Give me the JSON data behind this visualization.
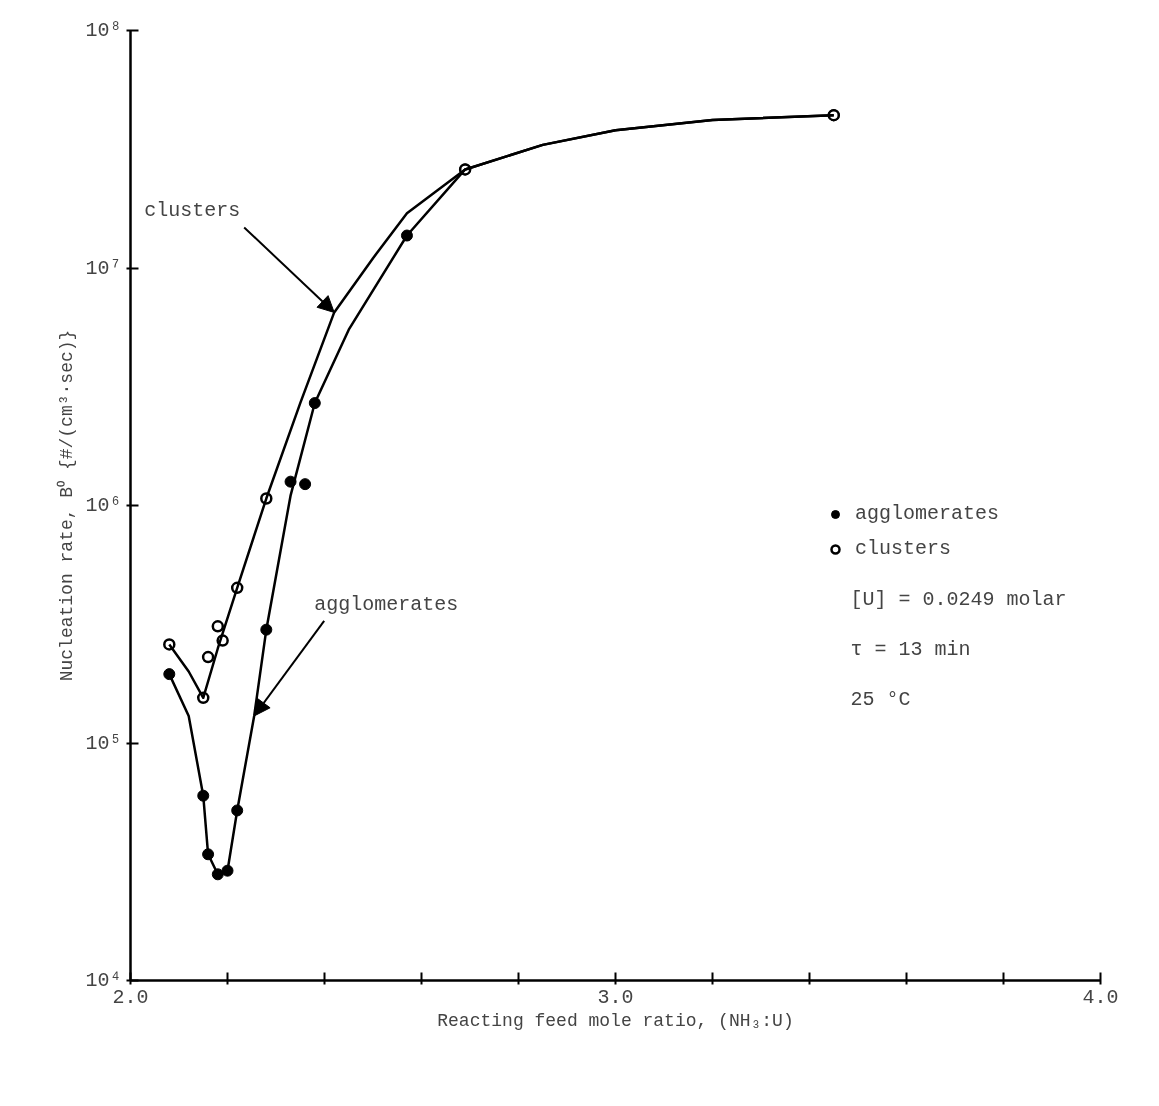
{
  "chart_data": {
    "type": "scatter",
    "xlabel": "Reacting feed mole ratio, (NH₃:U)",
    "ylabel": "Nucleation rate, B⁰ {#/(cm³·sec)}",
    "log": "y",
    "xlim": [
      2.0,
      4.0
    ],
    "ylim": [
      10000,
      100000000
    ],
    "xticks": [
      {
        "value": 2.0,
        "label": "2.0"
      },
      {
        "value": 2.2,
        "label": null
      },
      {
        "value": 2.4,
        "label": null
      },
      {
        "value": 2.6,
        "label": null
      },
      {
        "value": 2.8,
        "label": null
      },
      {
        "value": 3.0,
        "label": "3.0"
      },
      {
        "value": 3.2,
        "label": null
      },
      {
        "value": 3.4,
        "label": null
      },
      {
        "value": 3.6,
        "label": null
      },
      {
        "value": 3.8,
        "label": null
      },
      {
        "value": 4.0,
        "label": "4.0"
      }
    ],
    "yticks": [
      {
        "value": 10000,
        "label": "10⁴"
      },
      {
        "value": 100000,
        "label": "10⁵"
      },
      {
        "value": 1000000,
        "label": "10⁶"
      },
      {
        "value": 10000000,
        "label": "10⁷"
      },
      {
        "value": 100000000,
        "label": "10⁸"
      }
    ],
    "grid": false,
    "legend": "right",
    "series": [
      {
        "name": "agglomerates",
        "marker": "circle",
        "color": "#000000",
        "x": [
          2.08,
          2.15,
          2.16,
          2.18,
          2.2,
          2.22,
          2.28,
          2.33,
          2.36,
          2.38,
          2.57,
          2.69,
          3.45
        ],
        "values": [
          195000,
          60000,
          34000,
          28000,
          29000,
          52000,
          300000,
          1260000,
          1230000,
          2700000,
          13700000,
          26000000,
          44000000
        ]
      },
      {
        "name": "clusters",
        "marker": "circle_open",
        "color": "#000000",
        "x": [
          2.08,
          2.15,
          2.16,
          2.18,
          2.19,
          2.22,
          2.28,
          2.69,
          3.45
        ],
        "values": [
          260000,
          155000,
          230000,
          310000,
          270000,
          450000,
          1070000,
          26000000,
          44000000
        ]
      },
      {
        "type": "line",
        "color": "#000000",
        "x": [
          2.08,
          2.12,
          2.15,
          2.18,
          2.22,
          2.28,
          2.35,
          2.42,
          2.5,
          2.57,
          2.69,
          2.85,
          3.0,
          3.2,
          3.45
        ],
        "values": [
          260000,
          200000,
          155000,
          250000,
          450000,
          1070000,
          2700000,
          6500000,
          11000000,
          17000000,
          26000000,
          33000000,
          38000000,
          42000000,
          44000000
        ]
      },
      {
        "type": "line",
        "color": "#000000",
        "x": [
          2.08,
          2.12,
          2.15,
          2.16,
          2.18,
          2.2,
          2.22,
          2.255,
          2.28,
          2.33,
          2.38,
          2.45,
          2.57,
          2.69,
          2.85,
          3.0,
          3.2,
          3.45
        ],
        "values": [
          195000,
          130000,
          60000,
          34000,
          28000,
          29000,
          52000,
          130000,
          300000,
          1100000,
          2700000,
          5500000,
          13700000,
          26000000,
          33000000,
          38000000,
          42000000,
          44000000
        ]
      }
    ],
    "annotations": [
      {
        "text": "clusters",
        "x": 2.42,
        "y": 6500000
      },
      {
        "text": "agglomerates",
        "x": 2.255,
        "y": 130000
      },
      "[U] = 0.0249 molar",
      "τ = 13 min",
      "25 °C"
    ]
  }
}
